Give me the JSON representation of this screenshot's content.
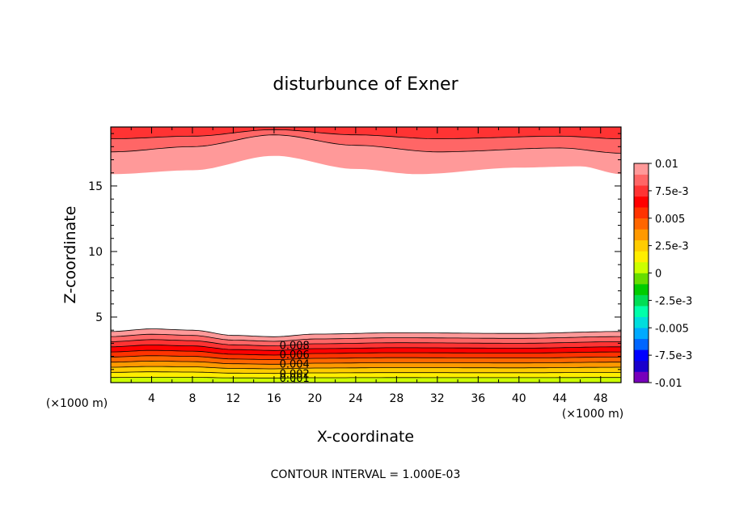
{
  "chart_data": {
    "type": "contour",
    "title": "disturbunce of Exner",
    "xlabel": "X-coordinate",
    "ylabel": "Z-coordinate",
    "x_unit": "(×1000 m)",
    "x_unit_right": "(×1000 m)",
    "xlim": [
      0,
      50
    ],
    "ylim": [
      0,
      19.5
    ],
    "xticks": [
      "4",
      "8",
      "12",
      "16",
      "20",
      "24",
      "28",
      "32",
      "36",
      "40",
      "44",
      "48"
    ],
    "yticks": [
      "5",
      "10",
      "15"
    ],
    "contour_interval_text": "CONTOUR INTERVAL = 1.000E-03",
    "colorbar": {
      "labels": [
        "0.01",
        "7.5e-3",
        "0.005",
        "2.5e-3",
        "0",
        "-2.5e-3",
        "-0.005",
        "-7.5e-3",
        "-0.01"
      ],
      "colors_bottom_to_top": [
        "#7700bb",
        "#1a00cc",
        "#0000ff",
        "#0066ff",
        "#00aaff",
        "#00dddd",
        "#00ffaa",
        "#00dd55",
        "#00cc00",
        "#66dd00",
        "#ccff00",
        "#ffee00",
        "#ffcc00",
        "#ff9900",
        "#ff6600",
        "#ff3300",
        "#ff0000",
        "#ff3333",
        "#ff6666",
        "#ff9999"
      ]
    },
    "inline_labels": [
      "0.008",
      "0.006",
      "0.004",
      "0.002",
      "0.001"
    ],
    "bottom_layer": {
      "surface_value": 0.0,
      "top_value": 0.01,
      "top_height_profile": [
        [
          0,
          3.9
        ],
        [
          4,
          4.1
        ],
        [
          8,
          4.0
        ],
        [
          12,
          3.6
        ],
        [
          16,
          3.5
        ],
        [
          20,
          3.7
        ],
        [
          28,
          3.8
        ],
        [
          40,
          3.75
        ],
        [
          50,
          3.9
        ]
      ]
    },
    "top_layer": {
      "bottom_value": 0.01,
      "bottom_height_profile": [
        [
          0,
          15.9
        ],
        [
          8,
          16.2
        ],
        [
          16,
          17.3
        ],
        [
          24,
          16.3
        ],
        [
          30,
          15.9
        ],
        [
          40,
          16.4
        ],
        [
          46,
          16.5
        ],
        [
          50,
          15.9
        ]
      ],
      "contour_lines": [
        [
          [
            0,
            17.6
          ],
          [
            8,
            18.0
          ],
          [
            16,
            18.9
          ],
          [
            24,
            18.1
          ],
          [
            32,
            17.6
          ],
          [
            44,
            17.9
          ],
          [
            50,
            17.5
          ]
        ],
        [
          [
            0,
            18.6
          ],
          [
            8,
            18.8
          ],
          [
            16,
            19.3
          ],
          [
            24,
            18.9
          ],
          [
            32,
            18.6
          ],
          [
            44,
            18.8
          ],
          [
            50,
            18.6
          ]
        ]
      ]
    }
  }
}
